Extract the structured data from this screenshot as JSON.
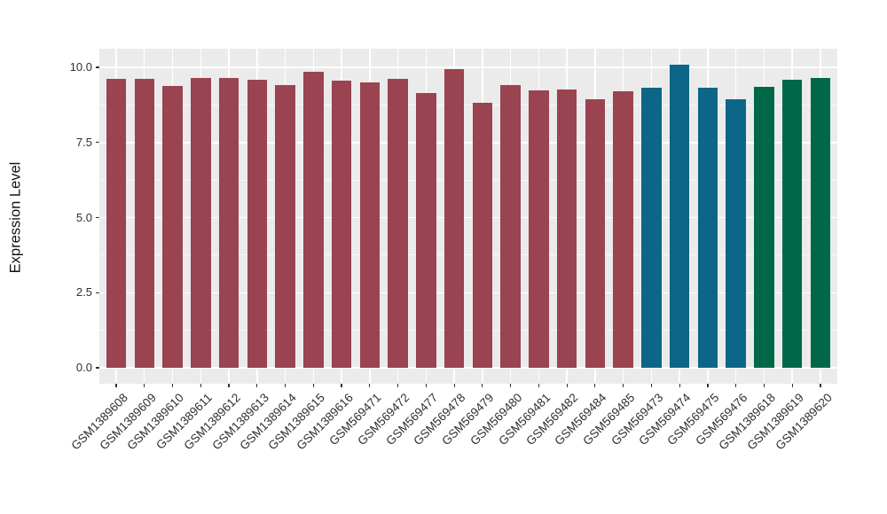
{
  "chart_data": {
    "type": "bar",
    "title": "",
    "xlabel": "",
    "ylabel": "Expression Level",
    "legend": "none",
    "grid": true,
    "panel_bg": "#EBEBEB",
    "grid_color": "#FFFFFF",
    "axis_text_color": "#2F2F2F",
    "tick_color": "#333333",
    "ylim": [
      -0.53,
      10.62
    ],
    "y_ticks": [
      0.0,
      2.5,
      5.0,
      7.5,
      10.0
    ],
    "y_tick_labels": [
      "0.0",
      "2.5",
      "5.0",
      "7.5",
      "10.0"
    ],
    "y_minor_ticks": [
      1.25,
      3.75,
      6.25,
      8.75
    ],
    "categories": [
      "GSM1389608",
      "GSM1389609",
      "GSM1389610",
      "GSM1389611",
      "GSM1389612",
      "GSM1389613",
      "GSM1389614",
      "GSM1389615",
      "GSM1389616",
      "GSM569471",
      "GSM569472",
      "GSM569477",
      "GSM569478",
      "GSM569479",
      "GSM569480",
      "GSM569481",
      "GSM569482",
      "GSM569484",
      "GSM569485",
      "GSM569473",
      "GSM569474",
      "GSM569475",
      "GSM569476",
      "GSM1389618",
      "GSM1389619",
      "GSM1389620"
    ],
    "values": [
      9.63,
      9.63,
      9.37,
      9.66,
      9.66,
      9.6,
      9.41,
      9.86,
      9.56,
      9.49,
      9.62,
      9.15,
      9.95,
      8.82,
      9.42,
      9.24,
      9.27,
      8.93,
      9.2,
      9.33,
      10.09,
      9.33,
      8.93,
      9.36,
      9.6,
      9.64
    ],
    "bar_groups": [
      "maroon",
      "maroon",
      "maroon",
      "maroon",
      "maroon",
      "maroon",
      "maroon",
      "maroon",
      "maroon",
      "maroon",
      "maroon",
      "maroon",
      "maroon",
      "maroon",
      "maroon",
      "maroon",
      "maroon",
      "maroon",
      "maroon",
      "teal",
      "teal",
      "teal",
      "teal",
      "green",
      "green",
      "green"
    ],
    "group_colors": {
      "maroon": "#9A4351",
      "teal": "#0D6687",
      "green": "#006748"
    }
  }
}
